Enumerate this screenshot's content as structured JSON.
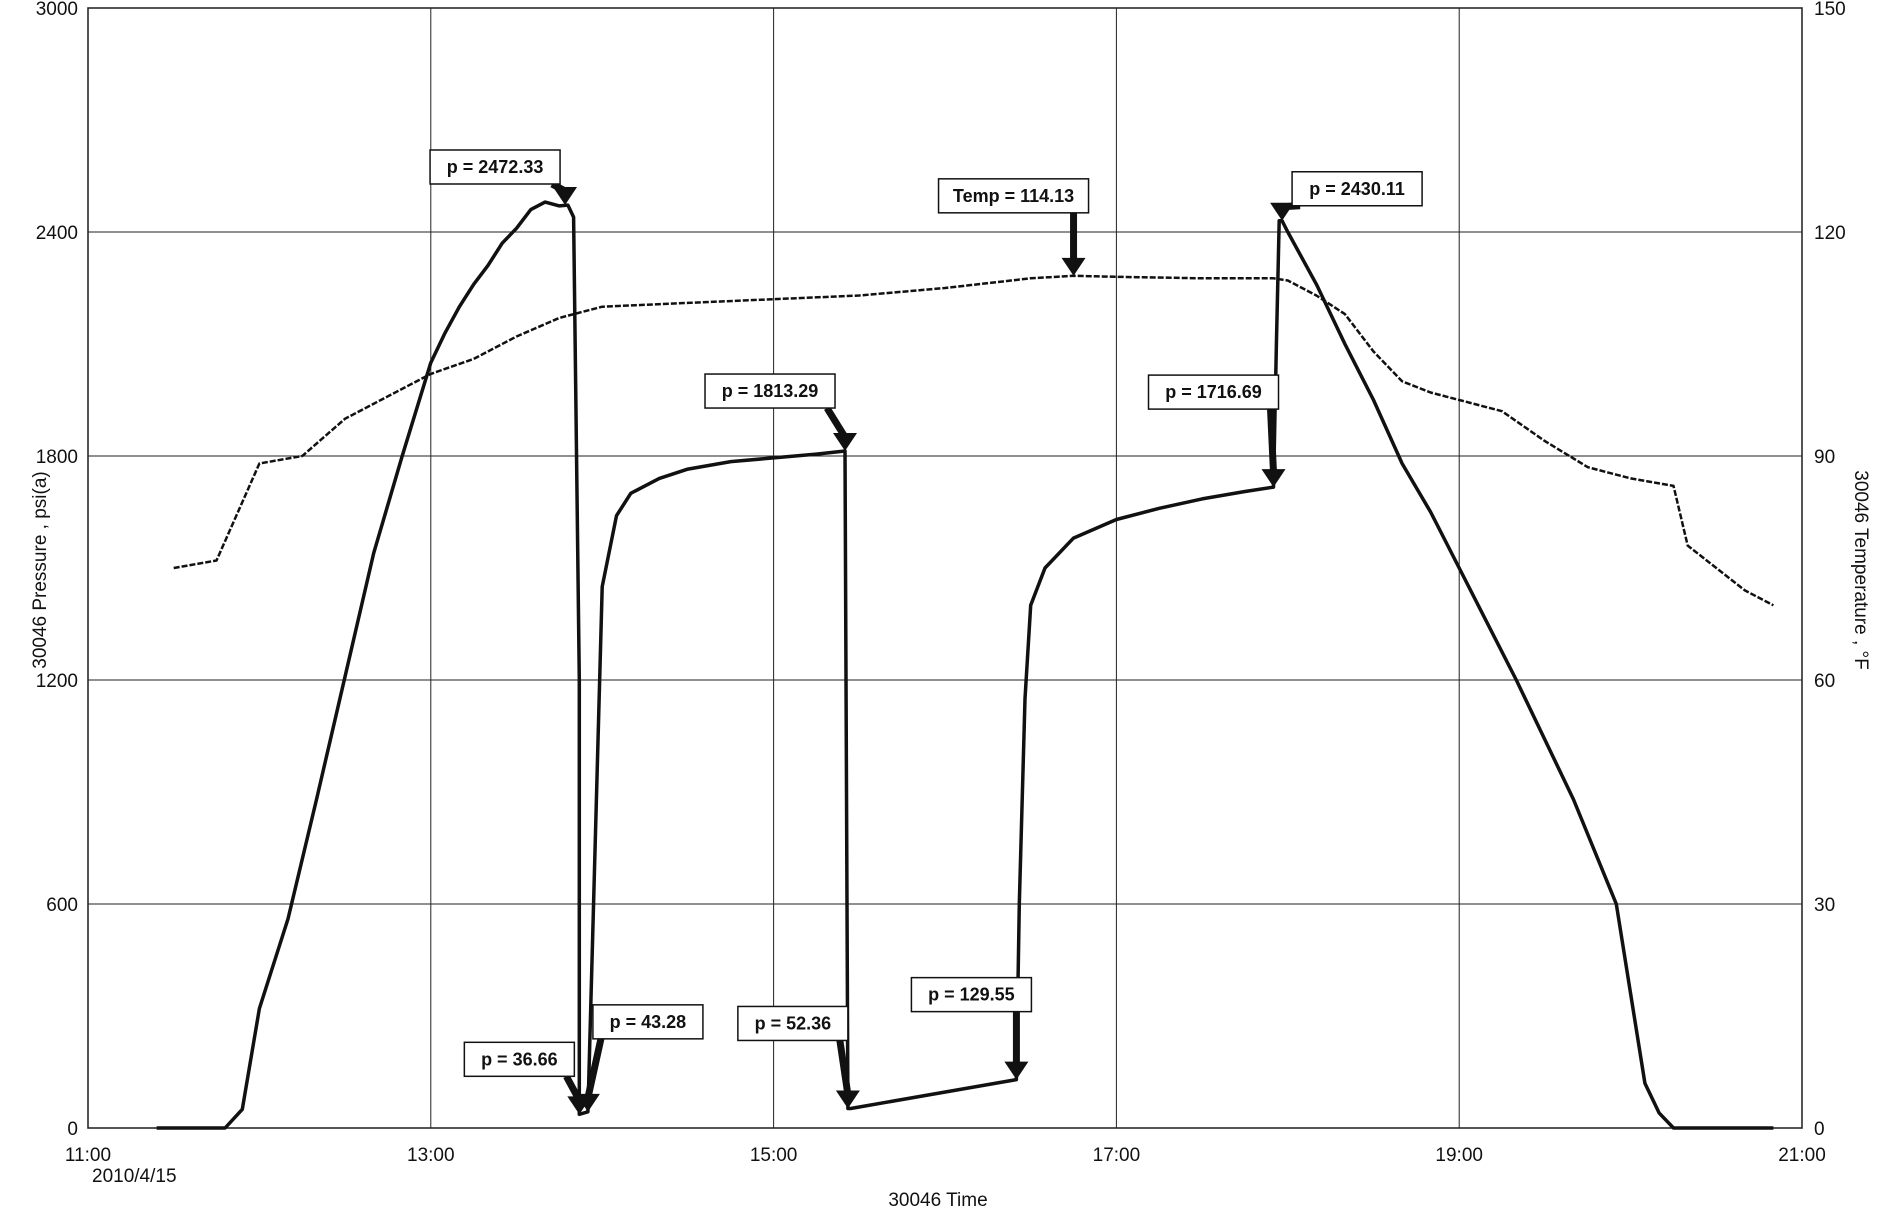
{
  "chart_data": {
    "type": "line",
    "xlabel": "30046 Time",
    "ylabel_left": "30046 Pressure , psi(a)",
    "ylabel_right": "30046 Temperature , °F",
    "x_start_date": "2010/4/15",
    "xlim": [
      "11:00",
      "21:00"
    ],
    "ylim_left": [
      0,
      3000
    ],
    "ylim_right": [
      0,
      150
    ],
    "grid": true,
    "x_ticks": [
      "11:00",
      "13:00",
      "15:00",
      "17:00",
      "19:00",
      "21:00"
    ],
    "y_ticks_left": [
      "0",
      "600",
      "1200",
      "1800",
      "2400",
      "3000"
    ],
    "y_ticks_right": [
      "0",
      "30",
      "60",
      "90",
      "120",
      "150"
    ],
    "series": [
      {
        "axis": "left",
        "x": [
          "11:24",
          "11:48",
          "11:54",
          "12:00",
          "12:10",
          "12:20",
          "12:30",
          "12:40",
          "12:50",
          "13:00",
          "13:05",
          "13:10",
          "13:15",
          "13:20",
          "13:25",
          "13:30",
          "13:35",
          "13:40",
          "13:45",
          "13:48",
          "13:50",
          "13:52",
          "13:52",
          "13:55",
          "14:00",
          "14:05",
          "14:10",
          "14:20",
          "14:30",
          "14:45",
          "15:00",
          "15:15",
          "15:25",
          "15:26",
          "15:27",
          "16:25",
          "16:26",
          "16:28",
          "16:30",
          "16:35",
          "16:45",
          "17:00",
          "17:15",
          "17:30",
          "17:45",
          "17:55",
          "17:56",
          "17:57",
          "17:58",
          "18:00",
          "18:10",
          "18:20",
          "18:30",
          "18:40",
          "18:50",
          "19:00",
          "19:20",
          "19:40",
          "19:55",
          "20:05",
          "20:10",
          "20:15",
          "20:50"
        ],
        "values": [
          0,
          0,
          50,
          320,
          560,
          880,
          1210,
          1540,
          1800,
          2050,
          2130,
          2200,
          2260,
          2310,
          2370,
          2410,
          2460,
          2480,
          2470,
          2472,
          2440,
          1200,
          36.66,
          43.28,
          1450,
          1640,
          1700,
          1740,
          1765,
          1785,
          1795,
          1805,
          1813.29,
          52.36,
          52.36,
          129.55,
          600,
          1150,
          1400,
          1500,
          1580,
          1630,
          1660,
          1685,
          1705,
          1716.69,
          2100,
          2430,
          2430.11,
          2400,
          2260,
          2100,
          1950,
          1780,
          1650,
          1500,
          1200,
          880,
          600,
          120,
          40,
          0,
          0
        ]
      },
      {
        "axis": "right",
        "x": [
          "11:30",
          "11:45",
          "12:00",
          "12:15",
          "12:30",
          "12:45",
          "13:00",
          "13:15",
          "13:30",
          "13:45",
          "14:00",
          "14:30",
          "15:00",
          "15:30",
          "16:00",
          "16:30",
          "16:45",
          "17:00",
          "17:30",
          "17:55",
          "18:00",
          "18:10",
          "18:20",
          "18:30",
          "18:40",
          "18:50",
          "19:00",
          "19:15",
          "19:30",
          "19:45",
          "20:00",
          "20:15",
          "20:20",
          "20:30",
          "20:40",
          "20:50"
        ],
        "values": [
          75,
          76,
          89,
          90,
          95,
          98,
          101,
          103,
          106,
          108.5,
          110,
          110.5,
          111,
          111.5,
          112.5,
          113.8,
          114.13,
          114,
          113.8,
          113.8,
          113.5,
          111.5,
          109,
          104,
          100,
          98.5,
          97.5,
          96,
          92,
          88.5,
          87,
          86,
          78,
          75,
          72,
          70
        ]
      }
    ],
    "annotations": [
      {
        "label": "p = 2472.33",
        "x": "13:47",
        "y": 2472.33,
        "axis": "left"
      },
      {
        "label": "Temp = 114.13",
        "x": "16:45",
        "y": 114.13,
        "axis": "right"
      },
      {
        "label": "p = 2430.11",
        "x": "17:58",
        "y": 2430.11,
        "axis": "left"
      },
      {
        "label": "p = 1813.29",
        "x": "15:25",
        "y": 1813.29,
        "axis": "left"
      },
      {
        "label": "p = 1716.69",
        "x": "17:55",
        "y": 1716.69,
        "axis": "left"
      },
      {
        "label": "p = 43.28",
        "x": "13:55",
        "y": 43.28,
        "axis": "left"
      },
      {
        "label": "p = 36.66",
        "x": "13:52",
        "y": 36.66,
        "axis": "left"
      },
      {
        "label": "p = 52.36",
        "x": "15:26",
        "y": 52.36,
        "axis": "left"
      },
      {
        "label": "p = 129.55",
        "x": "16:25",
        "y": 129.55,
        "axis": "left"
      }
    ]
  }
}
